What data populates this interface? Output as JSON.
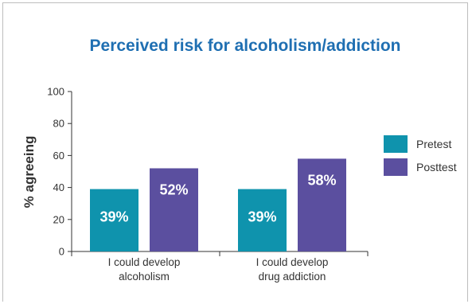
{
  "chart_data": {
    "type": "bar",
    "title": "Perceived risk for alcoholism/addiction",
    "ylabel": "% agreeing",
    "xlabel": "",
    "ylim": [
      0,
      100
    ],
    "yticks": [
      0,
      20,
      40,
      60,
      80,
      100
    ],
    "categories": [
      [
        "I could develop",
        "alcoholism"
      ],
      [
        "I could develop",
        "drug addiction"
      ]
    ],
    "series": [
      {
        "name": "Pretest",
        "values": [
          39,
          39
        ],
        "labels": [
          "39%",
          "39%"
        ],
        "color": "#0f93ad"
      },
      {
        "name": "Posttest",
        "values": [
          52,
          58
        ],
        "labels": [
          "52%",
          "58%"
        ],
        "color": "#5b4f9f"
      }
    ],
    "legend": "right",
    "grid": false
  }
}
